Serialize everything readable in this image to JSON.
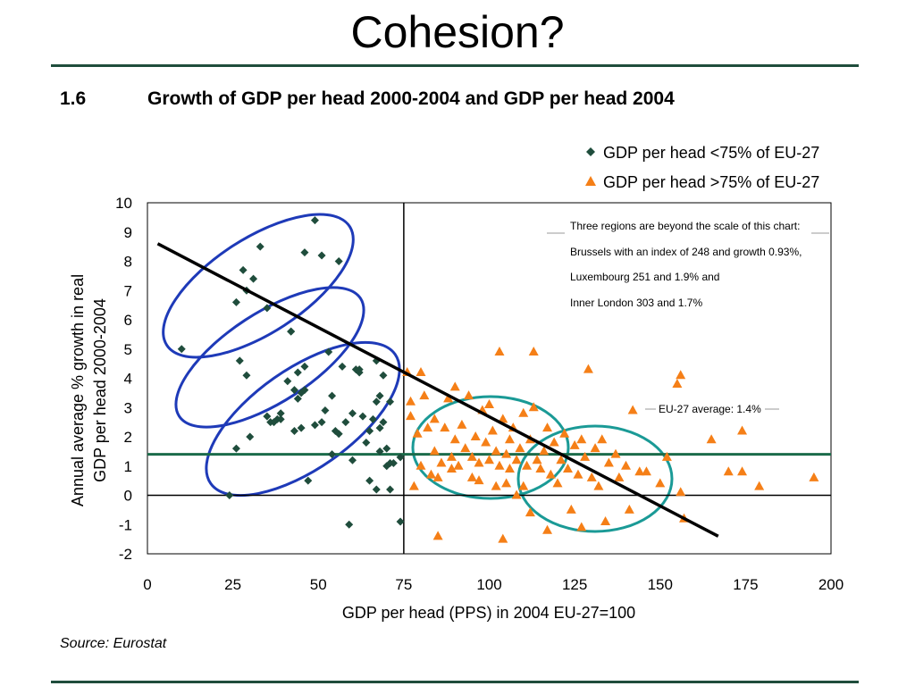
{
  "page": {
    "title": "Cohesion?",
    "figure_number": "1.6",
    "figure_title": "Growth of GDP per head 2000-2004 and GDP per head 2004",
    "source": "Source:  Eurostat"
  },
  "colors": {
    "rule": "#1f4d3c",
    "low": "#1f4d3c",
    "high": "#f57f17",
    "trend": "#000000",
    "avg_line": "#1b6b4a",
    "blue_ellipse": "#1e3ab8",
    "teal_ellipse": "#1a9a96"
  },
  "chart_data": {
    "type": "scatter",
    "xlabel": "GDP per head (PPS) in 2004 EU-27=100",
    "ylabel_lines": [
      "Annual average % growth in real",
      "GDP per head 2000-2004"
    ],
    "xlim": [
      0,
      200
    ],
    "ylim": [
      -2,
      10
    ],
    "xticks": [
      "0",
      "25",
      "50",
      "75",
      "100",
      "125",
      "150",
      "175",
      "200"
    ],
    "yticks": [
      "10",
      "9",
      "8",
      "7",
      "6",
      "5",
      "4",
      "3",
      "2",
      "1",
      "0",
      "-1",
      "-2"
    ],
    "legend_position": "top-right",
    "annotation_lines": [
      "Three regions are beyond the scale of this chart:",
      "Brussels with an index of 248 and growth 0.93%,",
      "Luxembourg 251 and 1.9% and",
      "Inner London 303 and 1.7%"
    ],
    "average_label": "EU-27 average: 1.4%",
    "average_value": 1.4,
    "reference_x": 75,
    "trend_line": [
      [
        3,
        8.6
      ],
      [
        167,
        -1.4
      ]
    ],
    "series": [
      {
        "name": "GDP per head <75% of EU-27",
        "marker": "diamond",
        "points": [
          [
            10,
            5.0
          ],
          [
            26,
            6.6
          ],
          [
            27,
            4.6
          ],
          [
            28,
            7.7
          ],
          [
            29,
            7.0
          ],
          [
            29,
            4.1
          ],
          [
            30,
            2.0
          ],
          [
            31,
            7.4
          ],
          [
            33,
            8.5
          ],
          [
            26,
            1.6
          ],
          [
            24,
            0.0
          ],
          [
            35,
            6.4
          ],
          [
            35,
            2.7
          ],
          [
            36,
            2.5
          ],
          [
            37,
            2.5
          ],
          [
            38,
            2.6
          ],
          [
            39,
            2.8
          ],
          [
            39,
            2.6
          ],
          [
            41,
            3.9
          ],
          [
            42,
            5.6
          ],
          [
            42,
            5.6
          ],
          [
            43,
            3.6
          ],
          [
            43,
            2.2
          ],
          [
            44,
            4.2
          ],
          [
            44,
            3.3
          ],
          [
            45,
            2.3
          ],
          [
            45,
            3.5
          ],
          [
            46,
            3.6
          ],
          [
            46,
            4.4
          ],
          [
            46,
            8.3
          ],
          [
            47,
            0.5
          ],
          [
            49,
            9.4
          ],
          [
            49,
            2.4
          ],
          [
            51,
            8.2
          ],
          [
            51,
            2.5
          ],
          [
            52,
            2.9
          ],
          [
            53,
            4.9
          ],
          [
            54,
            1.4
          ],
          [
            54,
            3.4
          ],
          [
            55,
            2.2
          ],
          [
            56,
            8.0
          ],
          [
            56,
            2.1
          ],
          [
            57,
            4.4
          ],
          [
            58,
            2.5
          ],
          [
            59,
            -1.0
          ],
          [
            60,
            2.8
          ],
          [
            60,
            1.2
          ],
          [
            61,
            4.3
          ],
          [
            62,
            4.3
          ],
          [
            62,
            4.2
          ],
          [
            63,
            2.7
          ],
          [
            64,
            1.8
          ],
          [
            65,
            2.2
          ],
          [
            65,
            0.5
          ],
          [
            66,
            2.6
          ],
          [
            67,
            4.6
          ],
          [
            67,
            0.2
          ],
          [
            67,
            3.2
          ],
          [
            68,
            2.3
          ],
          [
            68,
            1.5
          ],
          [
            68,
            3.4
          ],
          [
            69,
            4.1
          ],
          [
            69,
            2.5
          ],
          [
            70,
            1.6
          ],
          [
            70,
            1.0
          ],
          [
            71,
            1.1
          ],
          [
            71,
            3.2
          ],
          [
            71,
            0.2
          ],
          [
            72,
            1.1
          ],
          [
            74,
            -0.9
          ],
          [
            74,
            1.3
          ]
        ]
      },
      {
        "name": "GDP per head >75% of EU-27",
        "marker": "triangle",
        "points": [
          [
            76,
            4.2
          ],
          [
            77,
            2.7
          ],
          [
            77,
            3.2
          ],
          [
            78,
            0.3
          ],
          [
            79,
            2.1
          ],
          [
            80,
            4.2
          ],
          [
            80,
            1.0
          ],
          [
            81,
            3.4
          ],
          [
            82,
            2.3
          ],
          [
            83,
            0.7
          ],
          [
            84,
            1.5
          ],
          [
            84,
            2.6
          ],
          [
            85,
            -1.4
          ],
          [
            85,
            0.6
          ],
          [
            86,
            1.1
          ],
          [
            87,
            2.3
          ],
          [
            88,
            3.3
          ],
          [
            89,
            1.3
          ],
          [
            89,
            0.9
          ],
          [
            90,
            3.7
          ],
          [
            90,
            1.9
          ],
          [
            91,
            1.0
          ],
          [
            92,
            2.4
          ],
          [
            93,
            1.6
          ],
          [
            94,
            3.4
          ],
          [
            95,
            1.3
          ],
          [
            95,
            0.6
          ],
          [
            96,
            2.0
          ],
          [
            97,
            1.1
          ],
          [
            97,
            0.5
          ],
          [
            98,
            2.9
          ],
          [
            99,
            1.8
          ],
          [
            100,
            1.2
          ],
          [
            100,
            3.1
          ],
          [
            101,
            2.2
          ],
          [
            102,
            1.5
          ],
          [
            102,
            0.3
          ],
          [
            103,
            4.9
          ],
          [
            103,
            1.0
          ],
          [
            104,
            -1.5
          ],
          [
            104,
            2.6
          ],
          [
            105,
            1.4
          ],
          [
            105,
            0.4
          ],
          [
            106,
            1.9
          ],
          [
            106,
            0.9
          ],
          [
            107,
            2.3
          ],
          [
            108,
            1.2
          ],
          [
            108,
            0.0
          ],
          [
            109,
            1.6
          ],
          [
            110,
            0.3
          ],
          [
            110,
            2.8
          ],
          [
            111,
            1.0
          ],
          [
            112,
            -0.6
          ],
          [
            112,
            1.9
          ],
          [
            113,
            3.0
          ],
          [
            113,
            4.9
          ],
          [
            114,
            1.2
          ],
          [
            115,
            0.9
          ],
          [
            116,
            1.5
          ],
          [
            117,
            -1.2
          ],
          [
            117,
            2.3
          ],
          [
            118,
            0.7
          ],
          [
            119,
            1.8
          ],
          [
            120,
            0.4
          ],
          [
            121,
            1.2
          ],
          [
            122,
            2.1
          ],
          [
            123,
            0.9
          ],
          [
            124,
            -0.5
          ],
          [
            125,
            1.7
          ],
          [
            126,
            0.7
          ],
          [
            127,
            1.9
          ],
          [
            127,
            -1.1
          ],
          [
            128,
            1.3
          ],
          [
            129,
            4.3
          ],
          [
            130,
            0.6
          ],
          [
            131,
            1.6
          ],
          [
            132,
            0.3
          ],
          [
            133,
            1.9
          ],
          [
            134,
            -0.9
          ],
          [
            135,
            1.1
          ],
          [
            137,
            1.4
          ],
          [
            138,
            0.6
          ],
          [
            140,
            1.0
          ],
          [
            141,
            -0.5
          ],
          [
            142,
            2.9
          ],
          [
            144,
            0.8
          ],
          [
            146,
            0.8
          ],
          [
            150,
            0.4
          ],
          [
            152,
            1.3
          ],
          [
            155,
            3.8
          ],
          [
            156,
            4.1
          ],
          [
            156,
            0.1
          ],
          [
            157,
            -0.8
          ],
          [
            165,
            1.9
          ],
          [
            170,
            0.8
          ],
          [
            174,
            2.2
          ],
          [
            174,
            0.8
          ],
          [
            179,
            0.3
          ],
          [
            195,
            0.6
          ]
        ]
      }
    ]
  }
}
